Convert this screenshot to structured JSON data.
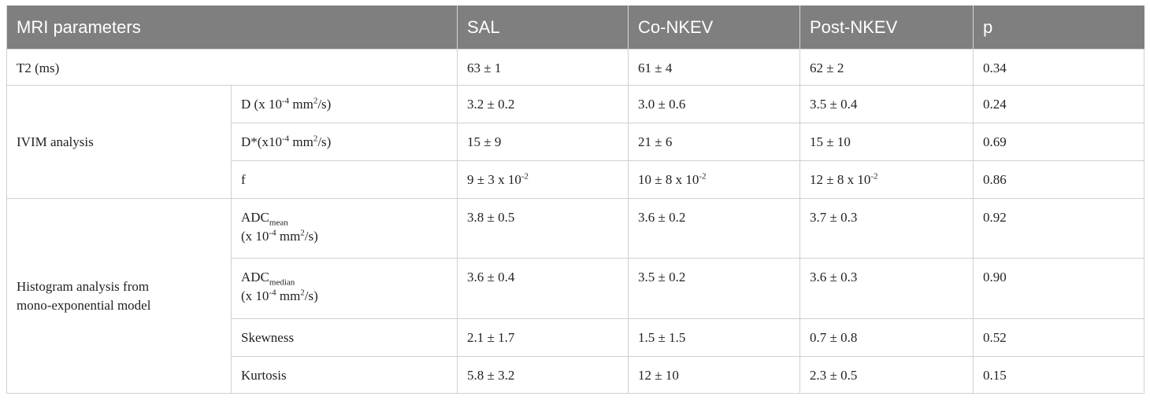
{
  "table": {
    "header": [
      "MRI parameters",
      "SAL",
      "Co-NKEV",
      "Post-NKEV",
      "p"
    ],
    "groups": [
      {
        "label": [
          [
            "T2 (ms)"
          ]
        ],
        "rows": [
          {
            "cells": [
              [
                [
                  "63 ± 1"
                ]
              ],
              [
                [
                  "61 ± 4"
                ]
              ],
              [
                [
                  "62 ± 2"
                ]
              ],
              [
                [
                  "0.34"
                ]
              ]
            ]
          }
        ]
      },
      {
        "label": [
          [
            "IVIM analysis"
          ]
        ],
        "rows": [
          {
            "parameter": [
              [
                "D (x 10",
                {
                  "text": "-4",
                  "script": "sup"
                },
                " mm",
                {
                  "text": "2",
                  "script": "sup"
                },
                "/s)"
              ]
            ],
            "cells": [
              [
                [
                  "3.2 ± 0.2"
                ]
              ],
              [
                [
                  "3.0 ± 0.6"
                ]
              ],
              [
                [
                  "3.5 ± 0.4"
                ]
              ],
              [
                [
                  "0.24"
                ]
              ]
            ]
          },
          {
            "parameter": [
              [
                "D*(x10",
                {
                  "text": "-4",
                  "script": "sup"
                },
                " mm",
                {
                  "text": "2",
                  "script": "sup"
                },
                "/s)"
              ]
            ],
            "cells": [
              [
                [
                  "15 ± 9"
                ]
              ],
              [
                [
                  "21 ± 6"
                ]
              ],
              [
                [
                  "15 ± 10"
                ]
              ],
              [
                [
                  "0.69"
                ]
              ]
            ]
          },
          {
            "parameter": [
              [
                "f"
              ]
            ],
            "cells": [
              [
                [
                  "9 ± 3 x 10",
                  {
                    "text": "-2",
                    "script": "sup"
                  }
                ]
              ],
              [
                [
                  "10 ± 8 x 10",
                  {
                    "text": "-2",
                    "script": "sup"
                  }
                ]
              ],
              [
                [
                  "12 ± 8 x 10",
                  {
                    "text": "-2",
                    "script": "sup"
                  }
                ]
              ],
              [
                [
                  "0.86"
                ]
              ]
            ]
          }
        ]
      },
      {
        "label": [
          [
            "Histogram analysis from"
          ],
          [
            "mono-exponential model"
          ]
        ],
        "rows": [
          {
            "parameter": [
              [
                "ADC",
                {
                  "text": "mean",
                  "script": "sub"
                }
              ],
              [
                "(x 10",
                {
                  "text": "-4",
                  "script": "sup"
                },
                " mm",
                {
                  "text": "2",
                  "script": "sup"
                },
                "/s)"
              ]
            ],
            "cells": [
              [
                [
                  "3.8 ± 0.5"
                ]
              ],
              [
                [
                  "3.6 ± 0.2"
                ]
              ],
              [
                [
                  "3.7 ± 0.3"
                ]
              ],
              [
                [
                  "0.92"
                ]
              ]
            ]
          },
          {
            "parameter": [
              [
                "ADC",
                {
                  "text": "median",
                  "script": "sub"
                }
              ],
              [
                "(x 10",
                {
                  "text": "-4",
                  "script": "sup"
                },
                " mm",
                {
                  "text": "2",
                  "script": "sup"
                },
                "/s)"
              ]
            ],
            "cells": [
              [
                [
                  "3.6 ± 0.4"
                ]
              ],
              [
                [
                  "3.5 ± 0.2"
                ]
              ],
              [
                [
                  "3.6 ± 0.3"
                ]
              ],
              [
                [
                  "0.90"
                ]
              ]
            ]
          },
          {
            "parameter": [
              [
                "Skewness"
              ]
            ],
            "cells": [
              [
                [
                  "2.1 ± 1.7"
                ]
              ],
              [
                [
                  "1.5 ± 1.5"
                ]
              ],
              [
                [
                  "0.7 ± 0.8"
                ]
              ],
              [
                [
                  "0.52"
                ]
              ]
            ]
          },
          {
            "parameter": [
              [
                "Kurtosis"
              ]
            ],
            "cells": [
              [
                [
                  "5.8 ± 3.2"
                ]
              ],
              [
                [
                  "12 ± 10"
                ]
              ],
              [
                [
                  "2.3 ± 0.5"
                ]
              ],
              [
                [
                  "0.15"
                ]
              ]
            ]
          }
        ]
      }
    ]
  }
}
